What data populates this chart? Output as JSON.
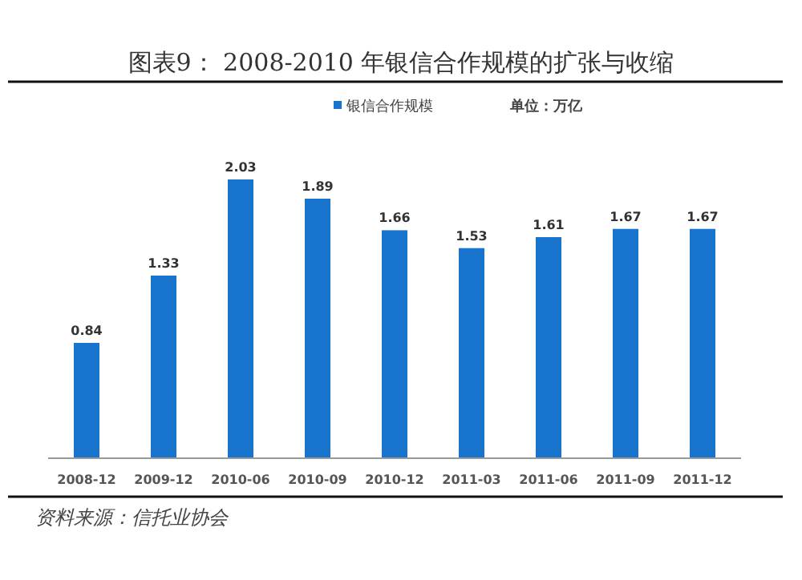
{
  "chart_data": {
    "type": "bar",
    "title": "图表9：  2008-2010 年银信合作规模的扩张与收缩",
    "categories": [
      "2008-12",
      "2009-12",
      "2010-06",
      "2010-09",
      "2010-12",
      "2011-03",
      "2011-06",
      "2011-09",
      "2011-12"
    ],
    "series": [
      {
        "name": "银信合作规模",
        "color": "#1874cd",
        "values": [
          0.84,
          1.33,
          2.03,
          1.89,
          1.66,
          1.53,
          1.61,
          1.67,
          1.67
        ]
      }
    ],
    "data_labels": true,
    "legend": "top",
    "annotations": [
      "单位：万亿",
      "资料来源：信托业协会"
    ]
  }
}
